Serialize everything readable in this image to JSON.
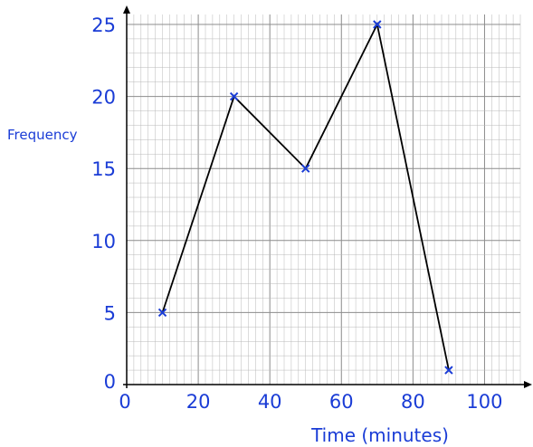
{
  "chart_data": {
    "type": "line",
    "title": "",
    "xlabel": "Time (minutes)",
    "ylabel": "Frequency",
    "x": [
      10,
      30,
      50,
      70,
      90
    ],
    "series": [
      {
        "values": [
          5,
          20,
          15,
          25,
          1
        ]
      }
    ],
    "xlim": [
      0,
      110
    ],
    "ylim": [
      0,
      25
    ],
    "x_ticks": [
      "0",
      "20",
      "40",
      "60",
      "80",
      "100"
    ],
    "y_ticks": [
      "0",
      "5",
      "10",
      "15",
      "20",
      "25"
    ],
    "grid": true,
    "marker": "x",
    "colors": {
      "line": "#000000",
      "marker": "#1a3cd6",
      "labels": "#1a3cd6",
      "grid": "#b8b8b8",
      "axes": "#000000"
    }
  }
}
